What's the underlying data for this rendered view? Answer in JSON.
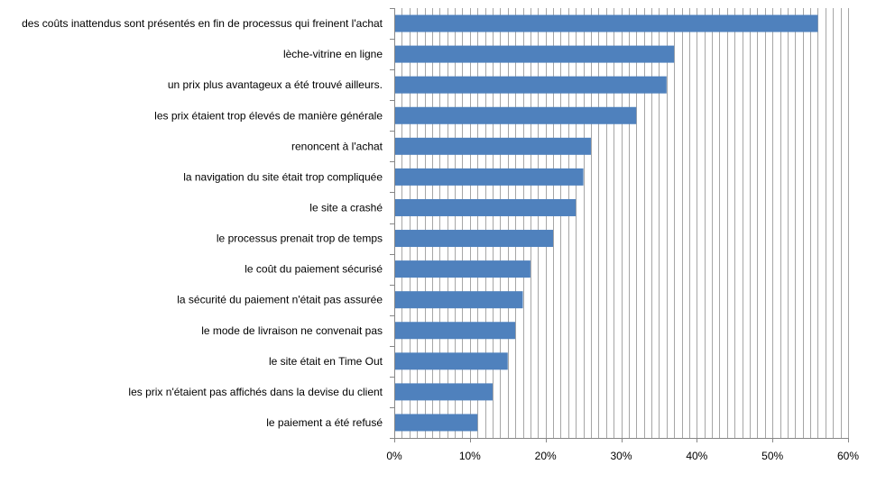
{
  "chart_data": {
    "type": "bar",
    "orientation": "horizontal",
    "title": "",
    "xlabel": "",
    "ylabel": "",
    "categories": [
      "des coûts inattendus  sont présentés en fin de processus qui freinent l'achat",
      "lèche-vitrine en ligne",
      "un prix plus avantageux  a  été trouvé ailleurs.",
      "les prix étaient trop élevés de manière générale",
      "renoncent à l'achat",
      "la navigation  du site était trop compliquée",
      "le site  a crashé",
      "le processus prenait trop de temps",
      "le coût du paiement sécurisé",
      "la sécurité du paiement n'était pas assurée",
      "le mode de livraison ne convenait pas",
      "le site était en Time Out",
      "les prix n'étaient pas affichés dans la devise du client",
      "le paiement a été refusé"
    ],
    "values": [
      0.56,
      0.37,
      0.36,
      0.32,
      0.26,
      0.25,
      0.24,
      0.21,
      0.18,
      0.17,
      0.16,
      0.15,
      0.13,
      0.11
    ],
    "xlim": [
      0,
      0.6
    ],
    "x_ticks": [
      0,
      0.1,
      0.2,
      0.3,
      0.4,
      0.5,
      0.6
    ],
    "x_tick_labels": [
      "0%",
      "10%",
      "20%",
      "30%",
      "40%",
      "50%",
      "60%"
    ],
    "grid": "vertical",
    "legend": "none",
    "bar_color": "#4F81BD",
    "grid_color": "#A6A6A6",
    "axis_color": "#878787"
  }
}
